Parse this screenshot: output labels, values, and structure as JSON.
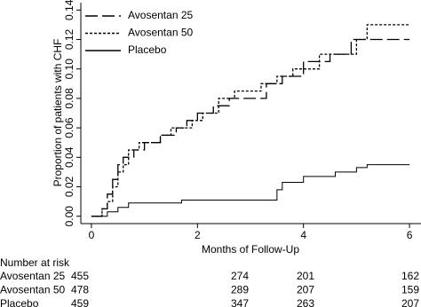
{
  "chart_data": {
    "type": "step",
    "ylabel": "Proportion of patients with CHF",
    "xlabel": "Months of Follow-Up",
    "xlim": [
      -0.2,
      6.2
    ],
    "xticks": [
      0,
      2,
      4,
      6
    ],
    "ylim": [
      -0.005,
      0.145
    ],
    "yticks": [
      {
        "value": 0,
        "label": "0.00"
      },
      {
        "value": 0.02,
        "label": "0.02"
      },
      {
        "value": 0.04,
        "label": "0.04"
      },
      {
        "value": 0.06,
        "label": "0.06"
      },
      {
        "value": 0.08,
        "label": "0.08"
      },
      {
        "value": 0.1,
        "label": "0.10"
      },
      {
        "value": 0.12,
        "label": "0.12"
      },
      {
        "value": 0.14,
        "label": "0.14"
      }
    ],
    "legend": "upper left",
    "series": [
      {
        "name": "Avosentan 25",
        "color": "#000000",
        "dash": "long",
        "x": [
          0,
          0.2,
          0.3,
          0.4,
          0.5,
          0.6,
          0.8,
          1.0,
          1.3,
          1.6,
          1.8,
          2.0,
          2.3,
          2.6,
          3.0,
          3.3,
          3.6,
          4.0,
          4.5,
          4.9,
          6.0
        ],
        "values": [
          0,
          0.005,
          0.015,
          0.025,
          0.035,
          0.04,
          0.045,
          0.05,
          0.055,
          0.06,
          0.065,
          0.07,
          0.075,
          0.08,
          0.08,
          0.09,
          0.095,
          0.105,
          0.11,
          0.12,
          0.12
        ]
      },
      {
        "name": "Avosentan 50",
        "color": "#000000",
        "dash": "short",
        "x": [
          0,
          0.2,
          0.3,
          0.4,
          0.5,
          0.6,
          0.7,
          0.9,
          1.3,
          1.5,
          1.9,
          2.1,
          2.4,
          2.7,
          3.2,
          3.5,
          3.8,
          4.3,
          5.0,
          5.2,
          6.0
        ],
        "values": [
          0,
          0.005,
          0.01,
          0.02,
          0.03,
          0.035,
          0.045,
          0.05,
          0.055,
          0.06,
          0.065,
          0.07,
          0.08,
          0.085,
          0.09,
          0.095,
          0.1,
          0.11,
          0.12,
          0.13,
          0.13
        ]
      },
      {
        "name": "Placebo",
        "color": "#000000",
        "dash": "solid",
        "x": [
          0,
          0.3,
          0.5,
          0.7,
          1.7,
          3.5,
          3.6,
          4.0,
          4.6,
          5.0,
          5.2,
          6.0
        ],
        "values": [
          0,
          0.003,
          0.006,
          0.009,
          0.011,
          0.018,
          0.023,
          0.027,
          0.03,
          0.033,
          0.035,
          0.035
        ]
      }
    ],
    "risk_table": {
      "title": "Number at risk",
      "rows": [
        {
          "name": "Avosentan 25",
          "values": [
            455,
            274,
            201,
            162
          ]
        },
        {
          "name": "Avosentan 50",
          "values": [
            478,
            289,
            207,
            159
          ]
        },
        {
          "name": "Placebo",
          "values": [
            459,
            347,
            263,
            207
          ]
        }
      ]
    }
  }
}
